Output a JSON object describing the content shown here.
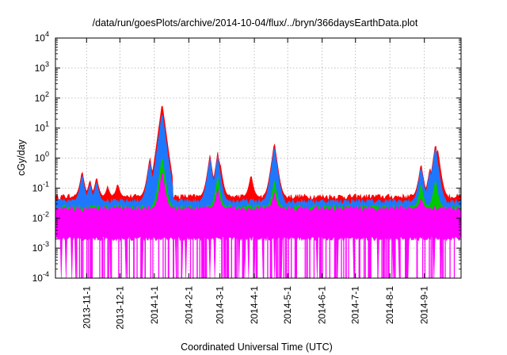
{
  "chart_data": {
    "type": "area",
    "title": "/data/run/goesPlots/archive/2014-10-04/flux/../bryn/366daysEarthData.plot",
    "xlabel": "Coordinated Universal Time (UTC)",
    "ylabel": "cGy/day",
    "yscale": "log",
    "ylim": [
      0.0001,
      10000
    ],
    "xlim": [
      "2013-10-04",
      "2014-10-04"
    ],
    "grid": true,
    "legend": "none",
    "y_ticks": [
      {
        "value": 0.0001,
        "base": "10",
        "exp": "-4"
      },
      {
        "value": 0.001,
        "base": "10",
        "exp": "-3"
      },
      {
        "value": 0.01,
        "base": "10",
        "exp": "-2"
      },
      {
        "value": 0.1,
        "base": "10",
        "exp": "-1"
      },
      {
        "value": 1,
        "base": "10",
        "exp": "0"
      },
      {
        "value": 10,
        "base": "10",
        "exp": "1"
      },
      {
        "value": 100,
        "base": "10",
        "exp": "2"
      },
      {
        "value": 1000,
        "base": "10",
        "exp": "3"
      },
      {
        "value": 10000,
        "base": "10",
        "exp": "4"
      }
    ],
    "x_ticks": [
      {
        "date": "2013-11-01",
        "label": "2013-11-1"
      },
      {
        "date": "2013-12-01",
        "label": "2013-12-1"
      },
      {
        "date": "2014-01-01",
        "label": "2014-1-1"
      },
      {
        "date": "2014-02-01",
        "label": "2014-2-1"
      },
      {
        "date": "2014-03-01",
        "label": "2014-3-1"
      },
      {
        "date": "2014-04-01",
        "label": "2014-4-1"
      },
      {
        "date": "2014-05-01",
        "label": "2014-5-1"
      },
      {
        "date": "2014-06-01",
        "label": "2014-6-1"
      },
      {
        "date": "2014-07-01",
        "label": "2014-7-1"
      },
      {
        "date": "2014-08-01",
        "label": "2014-8-1"
      },
      {
        "date": "2014-09-01",
        "label": "2014-9-1"
      }
    ],
    "series": [
      {
        "color": "#ff0000",
        "baseline": 0.05,
        "peaks": [
          {
            "date": "2013-10-28",
            "value": 0.4
          },
          {
            "date": "2013-11-04",
            "value": 0.2
          },
          {
            "date": "2013-11-10",
            "value": 0.25
          },
          {
            "date": "2013-11-20",
            "value": 0.12
          },
          {
            "date": "2013-11-29",
            "value": 0.15
          },
          {
            "date": "2013-12-28",
            "value": 1.1
          },
          {
            "date": "2014-01-03",
            "value": 1.8
          },
          {
            "date": "2014-01-08",
            "value": 70
          },
          {
            "date": "2014-02-20",
            "value": 1.3
          },
          {
            "date": "2014-02-27",
            "value": 1.6
          },
          {
            "date": "2014-03-01",
            "value": 0.8
          },
          {
            "date": "2014-03-29",
            "value": 0.3
          },
          {
            "date": "2014-04-19",
            "value": 3.5
          },
          {
            "date": "2014-08-29",
            "value": 0.7
          },
          {
            "date": "2014-09-06",
            "value": 0.5
          },
          {
            "date": "2014-09-11",
            "value": 3.2
          },
          {
            "date": "2014-09-13",
            "value": 2.0
          }
        ]
      },
      {
        "color": "#1e78ff",
        "baseline": 0.035,
        "peaks": [
          {
            "date": "2013-10-28",
            "value": 0.3
          },
          {
            "date": "2013-11-04",
            "value": 0.15
          },
          {
            "date": "2013-11-10",
            "value": 0.18
          },
          {
            "date": "2013-12-28",
            "value": 0.8
          },
          {
            "date": "2014-01-03",
            "value": 1.5
          },
          {
            "date": "2014-01-08",
            "value": 35
          },
          {
            "date": "2014-02-20",
            "value": 1.0
          },
          {
            "date": "2014-02-27",
            "value": 1.2
          },
          {
            "date": "2014-04-19",
            "value": 2.5
          },
          {
            "date": "2014-08-29",
            "value": 0.55
          },
          {
            "date": "2014-09-06",
            "value": 0.4
          },
          {
            "date": "2014-09-11",
            "value": 2.5
          }
        ]
      },
      {
        "color": "#00c800",
        "baseline": 0.022,
        "peaks": [
          {
            "date": "2014-01-08",
            "value": 1.2
          },
          {
            "date": "2014-02-27",
            "value": 0.25
          },
          {
            "date": "2014-04-19",
            "value": 0.2
          },
          {
            "date": "2014-08-29",
            "value": 0.15
          },
          {
            "date": "2014-09-11",
            "value": 0.2
          }
        ]
      },
      {
        "color": "#ff00ff",
        "baseline": 0.02,
        "floor": 0.0022,
        "peaks": [
          {
            "date": "2014-01-08",
            "value": 0.4
          },
          {
            "date": "2014-02-27",
            "value": 0.1
          },
          {
            "date": "2014-04-19",
            "value": 0.08
          },
          {
            "date": "2014-08-29",
            "value": 0.05
          }
        ]
      }
    ]
  }
}
